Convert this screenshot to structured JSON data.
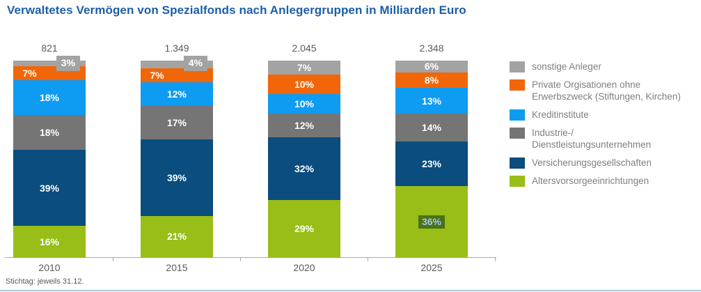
{
  "page": {
    "title": "Verwaltetes Vermögen von Spezialfonds nach Anlegergruppen in Milliarden Euro",
    "footnote": "Stichtag: jeweils 31.12.",
    "title_color": "#1B5EA9",
    "text_color": "#595959",
    "bottom_rule_color": "#AFC9E1"
  },
  "chart_data": {
    "type": "bar",
    "subtype": "stacked-100-percent",
    "stack_order": "top-to-bottom",
    "title": "Verwaltetes Vermögen von Spezialfonds nach Anlegergruppen in Milliarden Euro",
    "categories": [
      "2010",
      "2015",
      "2020",
      "2025"
    ],
    "bar_totals": [
      "821",
      "1.349",
      "2.045",
      "2.348"
    ],
    "unit": "%",
    "ylim": [
      0,
      100
    ],
    "grid": false,
    "legend_position": "right",
    "axis_color": "#A6A6A6",
    "footnote": "Stichtag: jeweils 31.12.",
    "series": [
      {
        "name": "sonstige Anleger",
        "color": "#A3A3A3",
        "values": [
          3,
          4,
          7,
          6
        ]
      },
      {
        "name": "Private Orgisationen ohne Erwerbszweck (Stiftungen, Kirchen)",
        "color": "#F16608",
        "values": [
          7,
          7,
          10,
          8
        ]
      },
      {
        "name": "Kreditinstitute",
        "color": "#0E9BF2",
        "values": [
          18,
          12,
          10,
          13
        ]
      },
      {
        "name": "Industrie-/ Dienstleistungsunternehmen",
        "color": "#757575",
        "values": [
          18,
          17,
          12,
          14
        ]
      },
      {
        "name": "Versicherungsgesellschaften",
        "color": "#0A4D7E",
        "values": [
          39,
          39,
          32,
          23
        ]
      },
      {
        "name": "Altersvorsorgeeinrichtungen",
        "color": "#98BE17",
        "values": [
          16,
          21,
          29,
          36
        ]
      }
    ],
    "legend_labels_wrapped": [
      [
        "sonstige Anleger"
      ],
      [
        "Private Orgisationen ohne",
        "Erwerbszweck (Stiftungen, Kirchen)"
      ],
      [
        "Kreditinstitute"
      ],
      [
        "Industrie-/",
        "Dienstleistungsunternehmen"
      ],
      [
        "Versicherungsgesellschaften"
      ],
      [
        "Altersvorsorgeeinrichtungen"
      ]
    ],
    "label_layout": {
      "callouts": [
        {
          "bar": 0,
          "series": 0
        },
        {
          "bar": 1,
          "series": 0
        }
      ],
      "left_shifted": [
        {
          "bar": 0,
          "series": 1
        },
        {
          "bar": 1,
          "series": 1
        }
      ],
      "highlighted": {
        "bar": 3,
        "series": 5,
        "bg": "#4A7218",
        "text_color": "#A5C6E8"
      }
    }
  }
}
